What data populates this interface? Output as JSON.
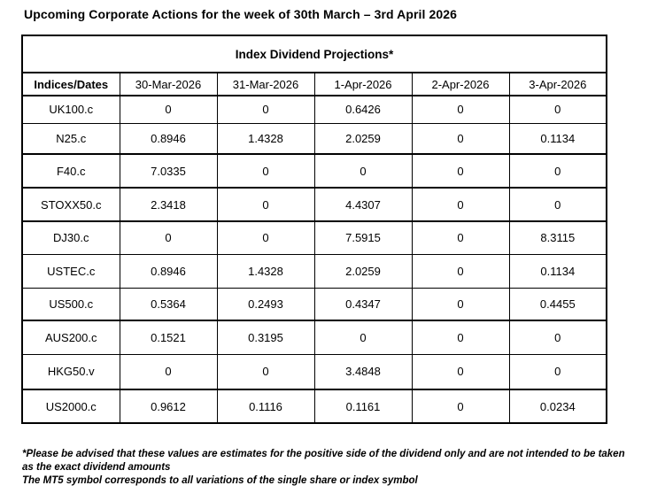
{
  "page_title": "Upcoming Corporate Actions for the week of 30th March – 3rd April 2026",
  "table": {
    "title": "Index Dividend Projections*",
    "corner_header": "Indices/Dates",
    "date_headers": [
      "30-Mar-2026",
      "31-Mar-2026",
      "1-Apr-2026",
      "2-Apr-2026",
      "3-Apr-2026"
    ],
    "rows": [
      {
        "symbol": "UK100.c",
        "values": [
          "0",
          "0",
          "0.6426",
          "0",
          "0"
        ]
      },
      {
        "symbol": "N25.c",
        "values": [
          "0.8946",
          "1.4328",
          "2.0259",
          "0",
          "0.1134"
        ]
      },
      {
        "symbol": "F40.c",
        "values": [
          "7.0335",
          "0",
          "0",
          "0",
          "0"
        ]
      },
      {
        "symbol": "STOXX50.c",
        "values": [
          "2.3418",
          "0",
          "4.4307",
          "0",
          "0"
        ]
      },
      {
        "symbol": "DJ30.c",
        "values": [
          "0",
          "0",
          "7.5915",
          "0",
          "8.3115"
        ]
      },
      {
        "symbol": "USTEC.c",
        "values": [
          "0.8946",
          "1.4328",
          "2.0259",
          "0",
          "0.1134"
        ]
      },
      {
        "symbol": "US500.c",
        "values": [
          "0.5364",
          "0.2493",
          "0.4347",
          "0",
          "0.4455"
        ]
      },
      {
        "symbol": "AUS200.c",
        "values": [
          "0.1521",
          "0.3195",
          "0",
          "0",
          "0"
        ]
      },
      {
        "symbol": "HKG50.v",
        "values": [
          "0",
          "0",
          "3.4848",
          "0",
          "0"
        ]
      },
      {
        "symbol": "US2000.c",
        "values": [
          "0.9612",
          "0.1116",
          "0.1161",
          "0",
          "0.0234"
        ]
      }
    ]
  },
  "footnotes": {
    "disclaimer": "*Please be advised that these values are estimates for the positive side of the dividend only and are not intended to be taken as the exact dividend amounts",
    "mt5_note": "The MT5 symbol corresponds to all variations of the single share or index symbol"
  }
}
